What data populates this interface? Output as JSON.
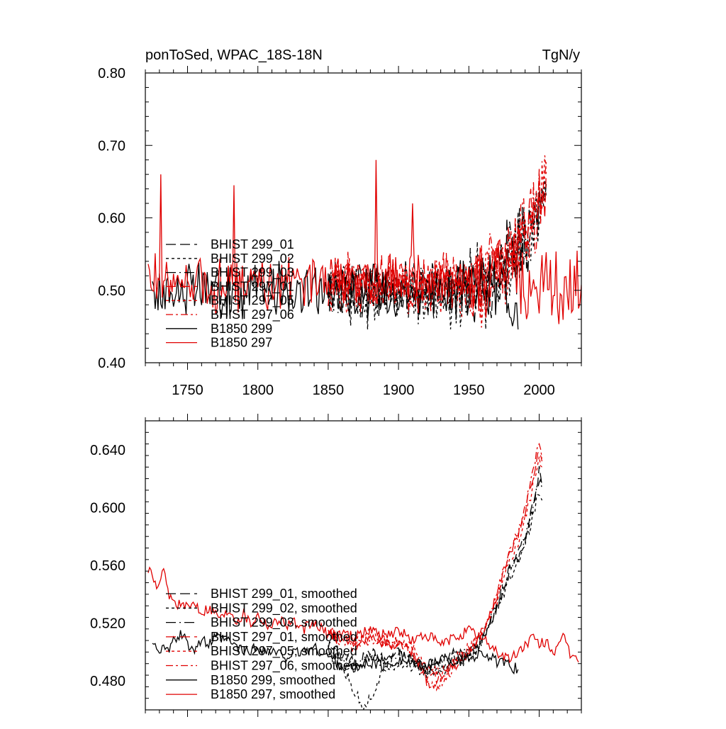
{
  "colors": {
    "black": "#000000",
    "red": "#e00000",
    "frame": "#000000"
  },
  "chart_data": [
    {
      "type": "line",
      "title_left": "ponToSed, WPAC_18S-18N",
      "title_right": "TgN/y",
      "xlim": [
        1720,
        2030
      ],
      "ylim": [
        0.4,
        0.8
      ],
      "x_ticks": [
        1750,
        1800,
        1850,
        1900,
        1950,
        2000
      ],
      "y_ticks": [
        0.4,
        0.5,
        0.6,
        0.7,
        0.8
      ],
      "y_tick_labels": [
        "0.40",
        "0.50",
        "0.60",
        "0.70",
        "0.80"
      ],
      "legend_position": "lower-left",
      "series": [
        {
          "name": "BHIST 299_01",
          "color": "black",
          "dash": "long",
          "x_start": 1850,
          "x_end": 2005,
          "base": 0.505,
          "amp": 0.03,
          "trend_start": 1950,
          "trend_end_value": 0.64,
          "seed": 11,
          "smoothed_values": []
        },
        {
          "name": "BHIST 299_02",
          "color": "black",
          "dash": "short",
          "x_start": 1850,
          "x_end": 2005,
          "base": 0.495,
          "amp": 0.035,
          "trend_start": 1950,
          "trend_end_value": 0.63,
          "seed": 12
        },
        {
          "name": "BHIST 299_03",
          "color": "black",
          "dash": "longdot",
          "x_start": 1850,
          "x_end": 2005,
          "base": 0.5,
          "amp": 0.03,
          "trend_start": 1950,
          "trend_end_value": 0.64,
          "seed": 13
        },
        {
          "name": "BHIST 297_01",
          "color": "red",
          "dash": "long",
          "x_start": 1850,
          "x_end": 2005,
          "base": 0.51,
          "amp": 0.03,
          "trend_start": 1950,
          "trend_end_value": 0.65,
          "seed": 14
        },
        {
          "name": "BHIST 297_05",
          "color": "red",
          "dash": "short",
          "x_start": 1850,
          "x_end": 2005,
          "base": 0.505,
          "amp": 0.03,
          "trend_start": 1950,
          "trend_end_value": 0.645,
          "seed": 15
        },
        {
          "name": "BHIST 297_06",
          "color": "red",
          "dash": "dashdot",
          "x_start": 1850,
          "x_end": 2005,
          "base": 0.51,
          "amp": 0.03,
          "trend_start": 1950,
          "trend_end_value": 0.65,
          "seed": 16
        },
        {
          "name": "B1850 299",
          "color": "black",
          "dash": "solid",
          "x_start": 1725,
          "x_end": 1985,
          "base": 0.5,
          "amp": 0.03,
          "seed": 17
        },
        {
          "name": "B1850 297",
          "color": "red",
          "dash": "solid",
          "x_start": 1722,
          "x_end": 2030,
          "base": 0.51,
          "amp": 0.03,
          "seed": 18,
          "spikes": [
            [
              1731,
              0.66
            ],
            [
              1783,
              0.645
            ],
            [
              1884,
              0.68
            ],
            [
              1910,
              0.62
            ]
          ]
        }
      ]
    },
    {
      "type": "line",
      "xlim": [
        1720,
        2030
      ],
      "ylim": [
        0.46,
        0.66
      ],
      "x_ticks": [
        1750,
        1800,
        1850,
        1900,
        1950,
        2000
      ],
      "y_ticks": [
        0.48,
        0.52,
        0.56,
        0.6,
        0.64
      ],
      "y_tick_labels": [
        "0.480",
        "0.520",
        "0.560",
        "0.600",
        "0.640"
      ],
      "legend_position": "lower-left",
      "series": [
        {
          "name": "BHIST 299_01, smoothed",
          "color": "black",
          "dash": "long",
          "points": [
            [
              1850,
              0.505
            ],
            [
              1860,
              0.498
            ],
            [
              1870,
              0.492
            ],
            [
              1880,
              0.5
            ],
            [
              1890,
              0.495
            ],
            [
              1900,
              0.5
            ],
            [
              1910,
              0.493
            ],
            [
              1920,
              0.49
            ],
            [
              1930,
              0.493
            ],
            [
              1940,
              0.5
            ],
            [
              1950,
              0.498
            ],
            [
              1958,
              0.505
            ],
            [
              1965,
              0.52
            ],
            [
              1970,
              0.53
            ],
            [
              1975,
              0.545
            ],
            [
              1980,
              0.56
            ],
            [
              1985,
              0.568
            ],
            [
              1990,
              0.58
            ],
            [
              1995,
              0.6
            ],
            [
              2000,
              0.625
            ],
            [
              2002,
              0.615
            ]
          ]
        },
        {
          "name": "BHIST 299_02, smoothed",
          "color": "black",
          "dash": "short",
          "points": [
            [
              1850,
              0.5
            ],
            [
              1858,
              0.492
            ],
            [
              1864,
              0.482
            ],
            [
              1870,
              0.47
            ],
            [
              1875,
              0.463
            ],
            [
              1880,
              0.468
            ],
            [
              1885,
              0.478
            ],
            [
              1890,
              0.488
            ],
            [
              1900,
              0.493
            ],
            [
              1910,
              0.49
            ],
            [
              1920,
              0.485
            ],
            [
              1930,
              0.487
            ],
            [
              1940,
              0.492
            ],
            [
              1950,
              0.495
            ],
            [
              1958,
              0.505
            ],
            [
              1965,
              0.518
            ],
            [
              1970,
              0.528
            ],
            [
              1975,
              0.54
            ],
            [
              1980,
              0.552
            ],
            [
              1985,
              0.562
            ],
            [
              1990,
              0.575
            ],
            [
              1995,
              0.59
            ],
            [
              2000,
              0.612
            ],
            [
              2002,
              0.605
            ]
          ]
        },
        {
          "name": "BHIST 299_03, smoothed",
          "color": "black",
          "dash": "longdot",
          "points": [
            [
              1850,
              0.502
            ],
            [
              1860,
              0.495
            ],
            [
              1870,
              0.49
            ],
            [
              1880,
              0.497
            ],
            [
              1890,
              0.492
            ],
            [
              1900,
              0.498
            ],
            [
              1910,
              0.494
            ],
            [
              1920,
              0.488
            ],
            [
              1930,
              0.491
            ],
            [
              1940,
              0.498
            ],
            [
              1950,
              0.5
            ],
            [
              1958,
              0.51
            ],
            [
              1965,
              0.522
            ],
            [
              1970,
              0.532
            ],
            [
              1975,
              0.547
            ],
            [
              1980,
              0.56
            ],
            [
              1985,
              0.565
            ],
            [
              1990,
              0.578
            ],
            [
              1995,
              0.598
            ],
            [
              2000,
              0.62
            ],
            [
              2002,
              0.612
            ]
          ]
        },
        {
          "name": "BHIST 297_01, smoothed",
          "color": "red",
          "dash": "long",
          "points": [
            [
              1850,
              0.512
            ],
            [
              1860,
              0.508
            ],
            [
              1870,
              0.505
            ],
            [
              1880,
              0.512
            ],
            [
              1890,
              0.506
            ],
            [
              1900,
              0.505
            ],
            [
              1910,
              0.5
            ],
            [
              1920,
              0.483
            ],
            [
              1930,
              0.482
            ],
            [
              1940,
              0.492
            ],
            [
              1950,
              0.5
            ],
            [
              1958,
              0.51
            ],
            [
              1965,
              0.525
            ],
            [
              1970,
              0.54
            ],
            [
              1975,
              0.555
            ],
            [
              1980,
              0.57
            ],
            [
              1985,
              0.58
            ],
            [
              1990,
              0.598
            ],
            [
              1995,
              0.618
            ],
            [
              2000,
              0.64
            ],
            [
              2002,
              0.632
            ]
          ]
        },
        {
          "name": "BHIST 297_05, smoothed",
          "color": "red",
          "dash": "short",
          "points": [
            [
              1850,
              0.515
            ],
            [
              1860,
              0.51
            ],
            [
              1870,
              0.506
            ],
            [
              1880,
              0.515
            ],
            [
              1890,
              0.508
            ],
            [
              1900,
              0.506
            ],
            [
              1910,
              0.503
            ],
            [
              1920,
              0.49
            ],
            [
              1930,
              0.485
            ],
            [
              1940,
              0.495
            ],
            [
              1950,
              0.503
            ],
            [
              1958,
              0.512
            ],
            [
              1965,
              0.522
            ],
            [
              1970,
              0.535
            ],
            [
              1975,
              0.55
            ],
            [
              1980,
              0.565
            ],
            [
              1985,
              0.575
            ],
            [
              1990,
              0.592
            ],
            [
              1995,
              0.612
            ],
            [
              2000,
              0.636
            ],
            [
              2002,
              0.628
            ]
          ]
        },
        {
          "name": "BHIST 297_06, smoothed",
          "color": "red",
          "dash": "dashdot",
          "points": [
            [
              1850,
              0.513
            ],
            [
              1860,
              0.507
            ],
            [
              1870,
              0.503
            ],
            [
              1880,
              0.51
            ],
            [
              1890,
              0.505
            ],
            [
              1900,
              0.507
            ],
            [
              1910,
              0.5
            ],
            [
              1920,
              0.48
            ],
            [
              1925,
              0.474
            ],
            [
              1930,
              0.478
            ],
            [
              1940,
              0.49
            ],
            [
              1950,
              0.5
            ],
            [
              1958,
              0.512
            ],
            [
              1965,
              0.528
            ],
            [
              1970,
              0.542
            ],
            [
              1975,
              0.558
            ],
            [
              1980,
              0.572
            ],
            [
              1985,
              0.582
            ],
            [
              1990,
              0.6
            ],
            [
              1995,
              0.622
            ],
            [
              2000,
              0.644
            ],
            [
              2002,
              0.634
            ]
          ]
        },
        {
          "name": "B1850 299, smoothed",
          "color": "black",
          "dash": "solid",
          "points": [
            [
              1725,
              0.508
            ],
            [
              1730,
              0.503
            ],
            [
              1735,
              0.5
            ],
            [
              1740,
              0.507
            ],
            [
              1745,
              0.512
            ],
            [
              1750,
              0.506
            ],
            [
              1755,
              0.503
            ],
            [
              1760,
              0.508
            ],
            [
              1765,
              0.505
            ],
            [
              1770,
              0.51
            ],
            [
              1780,
              0.507
            ],
            [
              1790,
              0.5
            ],
            [
              1800,
              0.503
            ],
            [
              1810,
              0.5
            ],
            [
              1820,
              0.497
            ],
            [
              1830,
              0.5
            ],
            [
              1840,
              0.503
            ],
            [
              1850,
              0.497
            ],
            [
              1860,
              0.49
            ],
            [
              1870,
              0.488
            ],
            [
              1880,
              0.493
            ],
            [
              1890,
              0.49
            ],
            [
              1900,
              0.495
            ],
            [
              1910,
              0.492
            ],
            [
              1920,
              0.49
            ],
            [
              1930,
              0.496
            ],
            [
              1940,
              0.493
            ],
            [
              1950,
              0.496
            ],
            [
              1960,
              0.5
            ],
            [
              1970,
              0.493
            ],
            [
              1980,
              0.49
            ],
            [
              1985,
              0.488
            ]
          ]
        },
        {
          "name": "B1850 297, smoothed",
          "color": "red",
          "dash": "solid",
          "points": [
            [
              1722,
              0.558
            ],
            [
              1726,
              0.548
            ],
            [
              1730,
              0.545
            ],
            [
              1733,
              0.556
            ],
            [
              1736,
              0.542
            ],
            [
              1740,
              0.535
            ],
            [
              1745,
              0.533
            ],
            [
              1750,
              0.53
            ],
            [
              1755,
              0.535
            ],
            [
              1760,
              0.528
            ],
            [
              1765,
              0.531
            ],
            [
              1770,
              0.527
            ],
            [
              1775,
              0.524
            ],
            [
              1780,
              0.53
            ],
            [
              1785,
              0.522
            ],
            [
              1790,
              0.527
            ],
            [
              1795,
              0.52
            ],
            [
              1800,
              0.526
            ],
            [
              1805,
              0.521
            ],
            [
              1810,
              0.518
            ],
            [
              1815,
              0.524
            ],
            [
              1820,
              0.519
            ],
            [
              1825,
              0.522
            ],
            [
              1830,
              0.515
            ],
            [
              1840,
              0.52
            ],
            [
              1850,
              0.512
            ],
            [
              1860,
              0.514
            ],
            [
              1870,
              0.51
            ],
            [
              1880,
              0.516
            ],
            [
              1890,
              0.512
            ],
            [
              1900,
              0.515
            ],
            [
              1910,
              0.508
            ],
            [
              1920,
              0.512
            ],
            [
              1930,
              0.505
            ],
            [
              1940,
              0.51
            ],
            [
              1950,
              0.515
            ],
            [
              1955,
              0.512
            ],
            [
              1960,
              0.508
            ],
            [
              1965,
              0.505
            ],
            [
              1970,
              0.5
            ],
            [
              1975,
              0.497
            ],
            [
              1980,
              0.495
            ],
            [
              1985,
              0.5
            ],
            [
              1990,
              0.505
            ],
            [
              1995,
              0.51
            ],
            [
              2000,
              0.505
            ],
            [
              2005,
              0.508
            ],
            [
              2010,
              0.5
            ],
            [
              2015,
              0.504
            ],
            [
              2018,
              0.512
            ],
            [
              2022,
              0.498
            ],
            [
              2025,
              0.5
            ],
            [
              2028,
              0.493
            ]
          ]
        }
      ]
    }
  ]
}
